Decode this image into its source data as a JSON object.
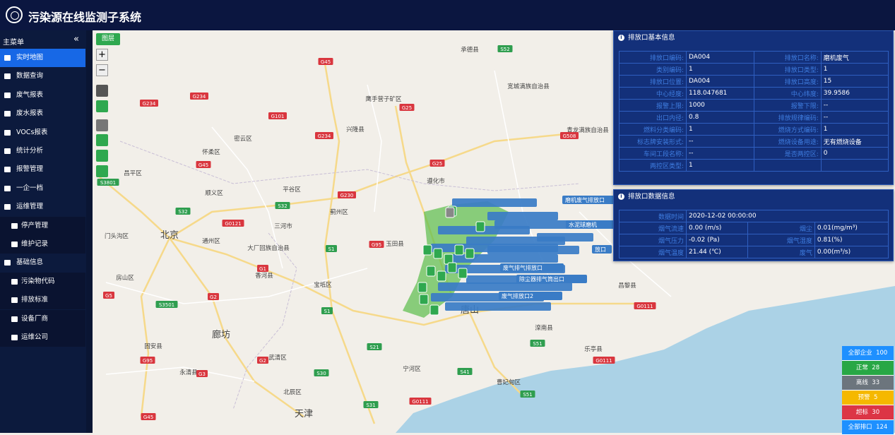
{
  "header": {
    "title": "污染源在线监测子系统"
  },
  "sidebar": {
    "title": "主菜单",
    "collapse": "«",
    "items": [
      {
        "label": "实时地图",
        "active": true
      },
      {
        "label": "数据查询"
      },
      {
        "label": "废气报表"
      },
      {
        "label": "废水报表"
      },
      {
        "label": "VOCs报表"
      },
      {
        "label": "统计分析"
      },
      {
        "label": "报警管理"
      },
      {
        "label": "一企一档"
      },
      {
        "label": "运维管理",
        "children": [
          "停产管理",
          "维护记录"
        ]
      },
      {
        "label": "基础信息",
        "children": [
          "污染物代码",
          "排放标准",
          "设备厂商",
          "运维公司"
        ]
      }
    ]
  },
  "map": {
    "layer_button": "图层",
    "zoom_in": "+",
    "zoom_out": "−",
    "labels": [
      "承德县",
      "宽城满族自治县",
      "鹰手营子矿区",
      "兴隆县",
      "密云区",
      "怀柔区",
      "平谷区",
      "遵化市",
      "蓟州区",
      "顺义区",
      "昌平区",
      "三河市",
      "北京",
      "通州区",
      "大厂回族自治县",
      "玉田县",
      "香河县",
      "宝坻区",
      "唐山",
      "廊坊",
      "固安县",
      "永清县",
      "宁河区",
      "滦南县",
      "乐亭县",
      "曹妃甸区",
      "北辰区",
      "天津",
      "武清区",
      "门头沟区",
      "房山区",
      "青龙满族自治县",
      "昌黎县"
    ],
    "shields": [
      "G45",
      "S52",
      "G234",
      "G234",
      "G101",
      "G25",
      "G234",
      "G508",
      "G45",
      "S3801",
      "G230",
      "S32",
      "S32",
      "G0121",
      "S1",
      "G95",
      "G1",
      "G5",
      "S3501",
      "G2",
      "S1",
      "G0111",
      "S21",
      "S51",
      "G95",
      "G3",
      "S30",
      "G2",
      "G0111",
      "S41",
      "S51",
      "G0111",
      "S31",
      "G45",
      "G25"
    ],
    "outlet_labels": [
      "磨机废气排放口",
      "水泥球磨机",
      "除尘器排气筒出口",
      "废气排放口2",
      "废气排气排放口",
      "放口"
    ]
  },
  "basic_info": {
    "title": "排放口基本信息",
    "rows": [
      [
        "排放口编码:",
        "DA004",
        "排放口名称:",
        "磨机废气"
      ],
      [
        "类别编码:",
        "1",
        "排放口类型:",
        "1"
      ],
      [
        "排放口位置:",
        "DA004",
        "排放口高度:",
        "15"
      ],
      [
        "中心经度:",
        "118.047681",
        "中心纬度:",
        "39.9586"
      ],
      [
        "报警上限:",
        "1000",
        "报警下限:",
        "--"
      ],
      [
        "出口内径:",
        "0.8",
        "排放规律编码:",
        "--"
      ],
      [
        "燃料分类编码:",
        "1",
        "燃烧方式编码:",
        "1"
      ],
      [
        "标志牌安装形式:",
        "--",
        "燃烧设备用途:",
        "无有燃烧设备"
      ],
      [
        "车间工段名称:",
        "--",
        "是否两控区:",
        "0"
      ],
      [
        "两控区类型:",
        "1"
      ]
    ]
  },
  "data_info": {
    "title": "排放口数据信息",
    "time_label": "数据时间",
    "time": "2020-12-02 00:00:00",
    "rows": [
      [
        "烟气流速",
        "0.00 (m/s)",
        "烟尘",
        "0.01(mg/m³)"
      ],
      [
        "烟气压力",
        "-0.02 (Pa)",
        "烟气湿度",
        "0.81(%)"
      ],
      [
        "烟气温度",
        "21.44 (℃)",
        "废气",
        "0.00(m³/s)"
      ]
    ]
  },
  "status": [
    {
      "label": "全部企业",
      "count": "100",
      "color": "#1e90ff"
    },
    {
      "label": "正常",
      "count": "28",
      "color": "#28a745"
    },
    {
      "label": "离线",
      "count": "33",
      "color": "#6c757d"
    },
    {
      "label": "预警",
      "count": "5",
      "color": "#f5b800"
    },
    {
      "label": "超标",
      "count": "30",
      "color": "#dc3545"
    },
    {
      "label": "全部排口",
      "count": "124",
      "color": "#1e90ff"
    }
  ]
}
